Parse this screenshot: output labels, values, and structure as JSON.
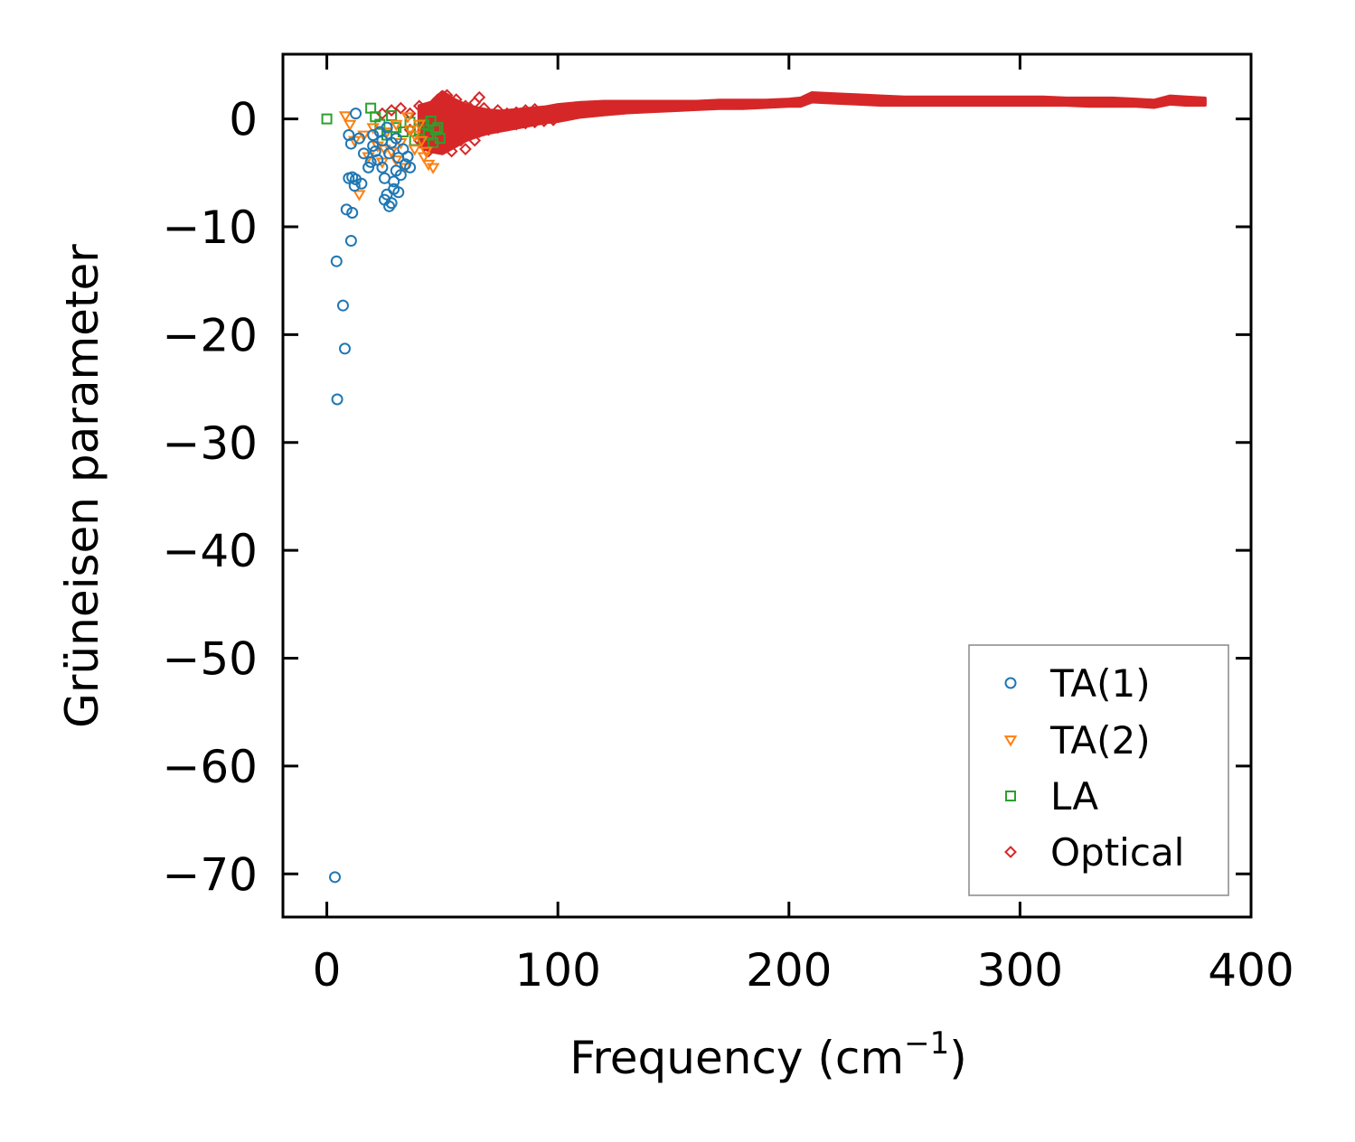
{
  "chart_data": {
    "type": "scatter",
    "title": "",
    "xlabel": "Frequency (cm",
    "xlabel_sup": "−1",
    "xlabel_close": ")",
    "ylabel": "Grüneisen parameter",
    "xlim": [
      -19,
      400
    ],
    "ylim": [
      -74,
      6
    ],
    "xticks": [
      0,
      100,
      200,
      300,
      400
    ],
    "yticks": [
      0,
      -10,
      -20,
      -30,
      -40,
      -50,
      -60,
      -70
    ],
    "xtick_labels": [
      "0",
      "100",
      "200",
      "300",
      "400"
    ],
    "ytick_labels": [
      "0",
      "−10",
      "−20",
      "−30",
      "−40",
      "−50",
      "−60",
      "−70"
    ],
    "grid": false,
    "legend_position": "bottom-right",
    "series": [
      {
        "name": "TA(1)",
        "marker": "circle",
        "color": "#1f77b4",
        "points": [
          [
            3.5,
            -70.3
          ],
          [
            4.5,
            -26.0
          ],
          [
            4.2,
            -13.2
          ],
          [
            7.0,
            -17.3
          ],
          [
            7.8,
            -21.3
          ],
          [
            10.5,
            -11.3
          ],
          [
            8.5,
            -8.4
          ],
          [
            11,
            -8.7
          ],
          [
            9.5,
            -5.5
          ],
          [
            11,
            -5.4
          ],
          [
            12.5,
            -5.6
          ],
          [
            12,
            -6.2
          ],
          [
            15,
            -6.0
          ],
          [
            9.5,
            -1.5
          ],
          [
            10.5,
            -2.3
          ],
          [
            12.5,
            0.5
          ],
          [
            14,
            -1.8
          ],
          [
            16,
            -3.2
          ],
          [
            18,
            -4.5
          ],
          [
            20,
            -2.5
          ],
          [
            22,
            -3.8
          ],
          [
            24,
            -2.0
          ],
          [
            25,
            -5.5
          ],
          [
            26,
            -7.0
          ],
          [
            27,
            -8.1
          ],
          [
            28,
            -7.8
          ],
          [
            29,
            -6.5
          ],
          [
            30,
            -4.8
          ],
          [
            31,
            -3.6
          ],
          [
            32,
            -5.2
          ],
          [
            33,
            -2.8
          ],
          [
            34,
            -4.2
          ],
          [
            35,
            -3.5
          ],
          [
            20,
            -1.5
          ],
          [
            23,
            -1.2
          ],
          [
            26,
            -0.8
          ],
          [
            28,
            -2.2
          ],
          [
            30,
            -1.8
          ],
          [
            24,
            -4.5
          ],
          [
            27,
            -3.2
          ],
          [
            29,
            -5.8
          ],
          [
            31,
            -6.8
          ],
          [
            25,
            -7.5
          ],
          [
            19,
            -4.0
          ],
          [
            21,
            -3.0
          ],
          [
            36,
            -4.5
          ]
        ]
      },
      {
        "name": "TA(2)",
        "marker": "triangle-down",
        "color": "#ff7f0e",
        "points": [
          [
            8,
            0.3
          ],
          [
            10,
            -0.5
          ],
          [
            12,
            -2.0
          ],
          [
            14,
            -7.0
          ],
          [
            16,
            -1.5
          ],
          [
            18,
            -3.5
          ],
          [
            20,
            -0.8
          ],
          [
            22,
            -2.5
          ],
          [
            24,
            -4.0
          ],
          [
            26,
            -1.2
          ],
          [
            28,
            -3.0
          ],
          [
            30,
            -0.5
          ],
          [
            32,
            -2.2
          ],
          [
            34,
            -4.5
          ],
          [
            36,
            -1.0
          ],
          [
            38,
            -2.8
          ],
          [
            40,
            -0.5
          ],
          [
            42,
            -3.5
          ],
          [
            44,
            -4.2
          ],
          [
            46,
            -4.5
          ],
          [
            35,
            0.2
          ],
          [
            38,
            -1.5
          ],
          [
            41,
            -2.0
          ],
          [
            43,
            -3.0
          ],
          [
            25,
            -2.8
          ],
          [
            30,
            -3.8
          ]
        ]
      },
      {
        "name": "LA",
        "marker": "square",
        "color": "#2ca02c",
        "points": [
          [
            0,
            0
          ],
          [
            19,
            1.0
          ],
          [
            21,
            0.2
          ],
          [
            23,
            -0.5
          ],
          [
            26,
            -1.5
          ],
          [
            28,
            0.3
          ],
          [
            30,
            -0.8
          ],
          [
            33,
            -1.2
          ],
          [
            36,
            -0.3
          ],
          [
            38,
            -2.0
          ],
          [
            40,
            -1.0
          ],
          [
            42,
            -0.5
          ],
          [
            44,
            -1.5
          ],
          [
            46,
            -2.2
          ],
          [
            48,
            -0.8
          ],
          [
            49,
            -1.8
          ],
          [
            47,
            -1.0
          ],
          [
            45,
            -0.2
          ]
        ]
      },
      {
        "name": "Optical",
        "marker": "diamond",
        "color": "#d62728",
        "points": [
          [
            24,
            0.5
          ],
          [
            28,
            0.8
          ],
          [
            32,
            1.0
          ],
          [
            36,
            0.5
          ],
          [
            40,
            1.2
          ],
          [
            44,
            0.5
          ],
          [
            48,
            1.8
          ],
          [
            50,
            2.0
          ],
          [
            52,
            2.2
          ],
          [
            54,
            1.5
          ],
          [
            56,
            1.8
          ],
          [
            58,
            1.0
          ],
          [
            60,
            1.2
          ],
          [
            62,
            0.8
          ],
          [
            64,
            1.5
          ],
          [
            66,
            2.0
          ],
          [
            68,
            1.0
          ],
          [
            70,
            0.5
          ],
          [
            74,
            0.8
          ],
          [
            78,
            0.5
          ],
          [
            82,
            0.6
          ],
          [
            86,
            0.8
          ],
          [
            90,
            0.9
          ],
          [
            50,
            -2.5
          ],
          [
            54,
            -3.0
          ],
          [
            58,
            -2.0
          ],
          [
            62,
            -1.5
          ],
          [
            66,
            -1.2
          ],
          [
            70,
            -1.0
          ],
          [
            74,
            -0.8
          ],
          [
            78,
            -0.6
          ],
          [
            82,
            -0.5
          ],
          [
            86,
            -0.4
          ],
          [
            90,
            -0.3
          ],
          [
            94,
            -0.2
          ],
          [
            98,
            -0.1
          ],
          [
            48,
            -1.5
          ],
          [
            52,
            -0.5
          ],
          [
            56,
            -1.0
          ],
          [
            60,
            0.0
          ],
          [
            44,
            -3.0
          ],
          [
            40,
            -2.0
          ],
          [
            36,
            -1.0
          ],
          [
            46,
            -2.0
          ],
          [
            60,
            -2.8
          ],
          [
            64,
            -2.0
          ]
        ]
      }
    ],
    "optical_band": {
      "x": [
        40,
        45,
        50,
        55,
        60,
        65,
        70,
        75,
        80,
        85,
        90,
        95,
        100,
        110,
        120,
        130,
        140,
        150,
        160,
        170,
        180,
        190,
        200,
        205,
        210,
        220,
        230,
        240,
        250,
        260,
        270,
        280,
        290,
        300,
        310,
        320,
        330,
        340,
        350,
        358,
        365,
        372,
        380
      ],
      "upper": [
        1.2,
        1.5,
        2.5,
        1.8,
        1.3,
        1.0,
        0.8,
        0.7,
        0.8,
        0.9,
        1.0,
        1.1,
        1.3,
        1.5,
        1.6,
        1.6,
        1.6,
        1.6,
        1.6,
        1.7,
        1.7,
        1.7,
        1.8,
        1.9,
        2.4,
        2.3,
        2.2,
        2.1,
        2.0,
        2.0,
        2.0,
        2.0,
        2.0,
        2.0,
        2.0,
        1.9,
        1.9,
        1.9,
        1.8,
        1.7,
        2.1,
        2.0,
        1.9
      ],
      "lower": [
        -2.5,
        -3.0,
        -3.2,
        -2.6,
        -2.0,
        -1.6,
        -1.3,
        -1.1,
        -0.9,
        -0.7,
        -0.5,
        -0.3,
        -0.2,
        0.2,
        0.4,
        0.6,
        0.7,
        0.8,
        0.9,
        1.0,
        1.0,
        1.1,
        1.2,
        1.2,
        1.6,
        1.5,
        1.4,
        1.3,
        1.3,
        1.3,
        1.3,
        1.3,
        1.3,
        1.3,
        1.3,
        1.3,
        1.2,
        1.2,
        1.2,
        1.1,
        1.4,
        1.3,
        1.3
      ]
    }
  }
}
